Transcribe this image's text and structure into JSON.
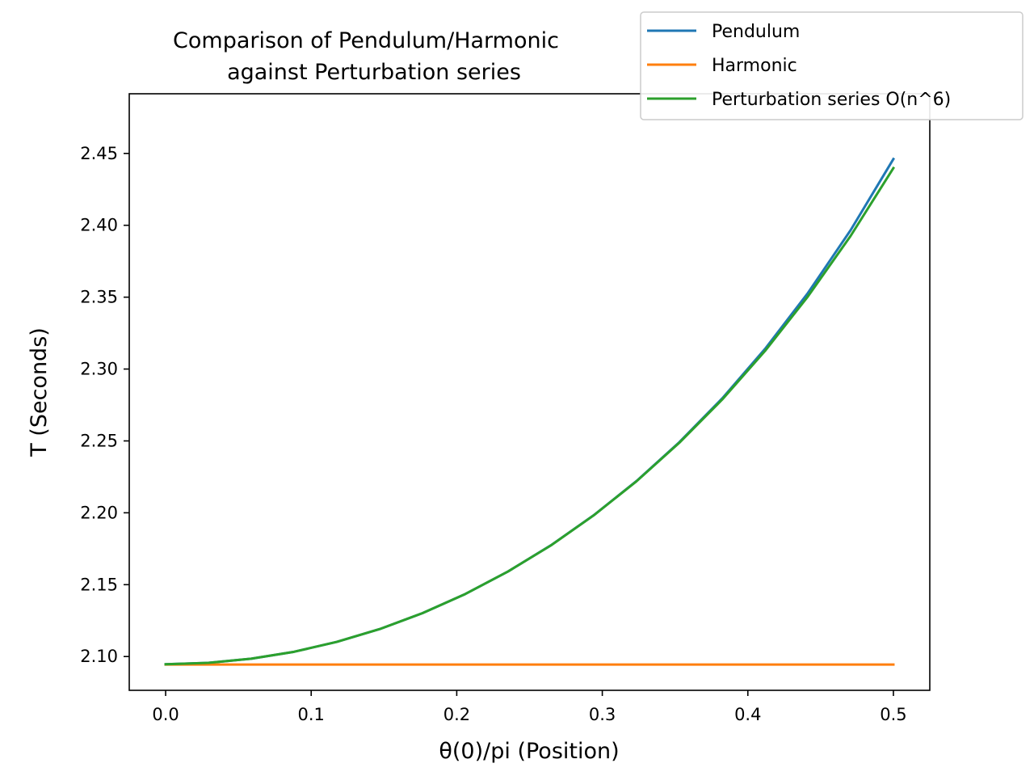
{
  "chart_data": {
    "type": "line",
    "title": [
      "Comparison of Pendulum/Harmonic",
      "against Perturbation series"
    ],
    "xlabel": "θ(0)/pi (Position)",
    "ylabel": "T (Seconds)",
    "xlim": [
      -0.025,
      0.525
    ],
    "ylim": [
      2.0765,
      2.4915
    ],
    "xticks": [
      0.0,
      0.1,
      0.2,
      0.3,
      0.4,
      0.5
    ],
    "xtick_labels": [
      "0.0",
      "0.1",
      "0.2",
      "0.3",
      "0.4",
      "0.5"
    ],
    "yticks": [
      2.1,
      2.15,
      2.2,
      2.25,
      2.3,
      2.35,
      2.4,
      2.45
    ],
    "ytick_labels": [
      "2.10",
      "2.15",
      "2.20",
      "2.25",
      "2.30",
      "2.35",
      "2.40",
      "2.45"
    ],
    "grid": false,
    "legend_position": "top-right",
    "series": [
      {
        "name": "Pendulum",
        "color": "#1f77b4",
        "x": [
          0.0,
          0.0294,
          0.0588,
          0.0882,
          0.1176,
          0.1471,
          0.1765,
          0.2059,
          0.2353,
          0.2647,
          0.2941,
          0.3235,
          0.3529,
          0.3824,
          0.4118,
          0.4412,
          0.4706,
          0.5
        ],
        "y": [
          2.0946,
          2.0956,
          2.0985,
          2.1033,
          2.1102,
          2.1191,
          2.1302,
          2.1435,
          2.1592,
          2.1774,
          2.1983,
          2.2221,
          2.2491,
          2.2796,
          2.314,
          2.3528,
          2.3966,
          2.4461
        ]
      },
      {
        "name": "Harmonic",
        "color": "#ff7f0e",
        "x": [
          0.0,
          0.5
        ],
        "y": [
          2.0944,
          2.0944
        ]
      },
      {
        "name": "Perturbation series O(n^6)",
        "color": "#2ca02c",
        "x": [
          0.0,
          0.0294,
          0.0588,
          0.0882,
          0.1176,
          0.1471,
          0.1765,
          0.2059,
          0.2353,
          0.2647,
          0.2941,
          0.3235,
          0.3529,
          0.3824,
          0.4118,
          0.4412,
          0.4706,
          0.5
        ],
        "y": [
          2.0946,
          2.0956,
          2.0985,
          2.1033,
          2.1102,
          2.1191,
          2.1302,
          2.1435,
          2.1592,
          2.1773,
          2.1982,
          2.2219,
          2.2487,
          2.2788,
          2.3126,
          2.3504,
          2.3926,
          2.4398
        ]
      }
    ]
  }
}
